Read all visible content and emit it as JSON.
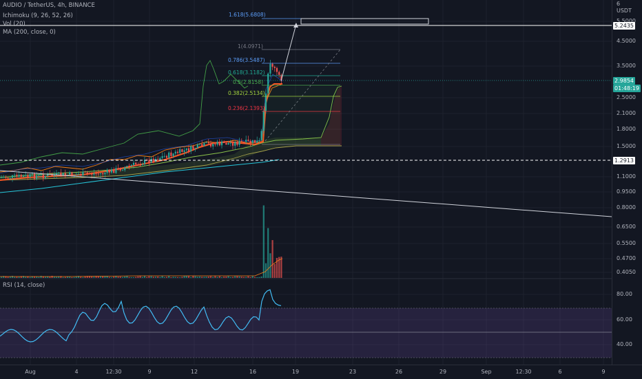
{
  "header": {
    "symbol_title": "AUDIO / TetherUS, 4h, BINANCE",
    "indicators": [
      "Ichimoku (9, 26, 52, 26)",
      "Vol (20)",
      "MA (200, close, 0)"
    ],
    "rsi_label": "RSI (14, close)"
  },
  "price_axis": {
    "currency": "USDT",
    "top_tick": "6",
    "ticks": [
      "5.5000",
      "4.5000",
      "3.5000",
      "2.5000",
      "2.1000",
      "1.8000",
      "1.5000",
      "1.1000",
      "0.9500",
      "0.8000",
      "0.6500",
      "0.5500",
      "0.4700",
      "0.4050"
    ],
    "rsi_ticks": [
      "80.00",
      "60.00",
      "40.00"
    ]
  },
  "tags": {
    "level_high": "5.2435",
    "current_price": "2.9854",
    "countdown": "01:48:19",
    "level_low": "1.2913"
  },
  "fib_levels": [
    {
      "label": "1.618(5.6808)",
      "color": "#5b9cf6"
    },
    {
      "label": "1(4.0971)",
      "color": "#787b86"
    },
    {
      "label": "0.786(3.5487)",
      "color": "#5b9cf6"
    },
    {
      "label": "0.618(3.1182)",
      "color": "#22ab94"
    },
    {
      "label": "0.5(2.8158)",
      "color": "#4caf50"
    },
    {
      "label": "0.382(2.5134)",
      "color": "#a5d63f"
    },
    {
      "label": "0.236(2.1393)",
      "color": "#f23645"
    }
  ],
  "time_axis": [
    "Aug",
    "4",
    "12:30",
    "9",
    "12",
    "16",
    "19",
    "23",
    "26",
    "29",
    "Sep",
    "12:30",
    "6",
    "9"
  ],
  "colors": {
    "background": "#131722",
    "up": "#26a69a",
    "down": "#ef5350",
    "rsi": "#42bdf5",
    "rsi_band": "#7e57c2",
    "ma": "#2196f3"
  }
}
